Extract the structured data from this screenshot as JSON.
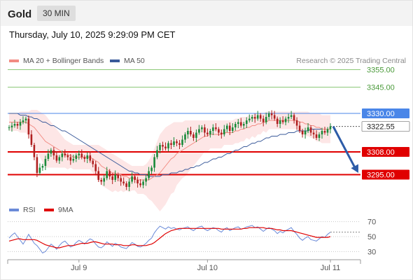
{
  "header": {
    "symbol": "Gold",
    "timeframe": "30 MIN"
  },
  "datetime": "Thursday, July 10, 2025 9:29:09 PM CET",
  "credit": "Research © 2025 Trading Central",
  "colors": {
    "ma20": "#f28b82",
    "band_fill": "#fde3e3",
    "ma50": "#3a5a9a",
    "bull": "#1a8a3a",
    "bear": "#b02020",
    "resistance": "#8cc878",
    "support": "#e00000",
    "pivot": "#4a86e8",
    "price": "#333333",
    "arrow": "#2d5ca8",
    "rsi": "#6a8ad8",
    "rsi_ma": "#e00000"
  },
  "chart_data": [
    {
      "type": "candlestick",
      "legend": [
        "MA 20 + Bollinger Bands",
        "MA 50"
      ],
      "y_range": [
        3282,
        3362
      ],
      "x_ticks": [
        {
          "label": "Jul 9",
          "index": 25
        },
        {
          "label": "Jul 10",
          "index": 71
        },
        {
          "label": "Jul 11",
          "index": 115
        }
      ],
      "levels": [
        {
          "value": 3355.0,
          "label": "3355.00",
          "kind": "resistance"
        },
        {
          "value": 3345.0,
          "label": "3345.00",
          "kind": "resistance"
        },
        {
          "value": 3330.0,
          "label": "3330.00",
          "kind": "pivot"
        },
        {
          "value": 3322.55,
          "label": "3322.55",
          "kind": "price"
        },
        {
          "value": 3308.0,
          "label": "3308.00",
          "kind": "support"
        },
        {
          "value": 3295.0,
          "label": "3295.00",
          "kind": "support"
        }
      ],
      "close": [
        3322,
        3323,
        3324,
        3323,
        3325,
        3326,
        3327,
        3318,
        3312,
        3305,
        3296,
        3299,
        3300,
        3304,
        3307,
        3309,
        3306,
        3303,
        3305,
        3307,
        3306,
        3305,
        3303,
        3304,
        3306,
        3307,
        3305,
        3304,
        3306,
        3303,
        3301,
        3297,
        3292,
        3291,
        3293,
        3297,
        3294,
        3292,
        3295,
        3293,
        3291,
        3290,
        3288,
        3291,
        3294,
        3292,
        3290,
        3289,
        3291,
        3293,
        3297,
        3299,
        3305,
        3309,
        3312,
        3311,
        3310,
        3313,
        3312,
        3314,
        3313,
        3312,
        3315,
        3318,
        3320,
        3318,
        3316,
        3319,
        3321,
        3322,
        3319,
        3318,
        3320,
        3322,
        3321,
        3319,
        3318,
        3321,
        3323,
        3320,
        3322,
        3324,
        3325,
        3323,
        3324,
        3326,
        3327,
        3328,
        3327,
        3329,
        3327,
        3325,
        3328,
        3330,
        3329,
        3327,
        3324,
        3326,
        3325,
        3327,
        3328,
        3329,
        3326,
        3323,
        3320,
        3318,
        3320,
        3322,
        3319,
        3318,
        3316,
        3318,
        3320,
        3319,
        3321,
        3322.55
      ],
      "ma20": [
        3325,
        3325,
        3325,
        3325,
        3325,
        3325,
        3325,
        3324,
        3323,
        3322,
        3320,
        3318,
        3316,
        3314,
        3313,
        3312,
        3311,
        3310,
        3309,
        3308,
        3307,
        3306,
        3306,
        3305,
        3305,
        3305,
        3305,
        3305,
        3305,
        3305,
        3304,
        3303,
        3302,
        3300,
        3299,
        3298,
        3297,
        3296,
        3296,
        3295,
        3295,
        3294,
        3294,
        3293,
        3293,
        3293,
        3292,
        3292,
        3292,
        3292,
        3292,
        3293,
        3294,
        3295,
        3296,
        3298,
        3300,
        3302,
        3304,
        3305,
        3307,
        3308,
        3309,
        3310,
        3311,
        3312,
        3313,
        3314,
        3315,
        3316,
        3317,
        3317,
        3318,
        3318,
        3318,
        3318,
        3318,
        3319,
        3319,
        3319,
        3319,
        3320,
        3320,
        3321,
        3321,
        3322,
        3322,
        3323,
        3323,
        3324,
        3324,
        3325,
        3325,
        3326,
        3326,
        3326,
        3326,
        3326,
        3326,
        3326,
        3326,
        3326,
        3326,
        3326,
        3325,
        3325,
        3324,
        3324,
        3323,
        3323,
        3322,
        3322,
        3321,
        3321,
        3321,
        3321
      ],
      "band_upper": [
        3330,
        3330,
        3330,
        3330,
        3331,
        3331,
        3331,
        3331,
        3332,
        3332,
        3332,
        3331,
        3330,
        3329,
        3327,
        3325,
        3323,
        3321,
        3319,
        3317,
        3315,
        3314,
        3313,
        3312,
        3312,
        3312,
        3312,
        3312,
        3312,
        3312,
        3312,
        3312,
        3312,
        3311,
        3310,
        3309,
        3308,
        3307,
        3306,
        3305,
        3304,
        3303,
        3302,
        3301,
        3300,
        3300,
        3300,
        3300,
        3300,
        3301,
        3303,
        3306,
        3310,
        3314,
        3318,
        3320,
        3322,
        3323,
        3324,
        3325,
        3325,
        3325,
        3325,
        3326,
        3326,
        3326,
        3326,
        3326,
        3326,
        3326,
        3326,
        3326,
        3326,
        3326,
        3326,
        3326,
        3326,
        3326,
        3326,
        3326,
        3326,
        3327,
        3327,
        3328,
        3328,
        3328,
        3329,
        3329,
        3330,
        3330,
        3330,
        3330,
        3331,
        3331,
        3331,
        3331,
        3331,
        3331,
        3331,
        3331,
        3331,
        3331,
        3331,
        3331,
        3331,
        3331,
        3331,
        3331,
        3330,
        3330,
        3330,
        3330,
        3329,
        3329,
        3329,
        3329
      ],
      "band_lower": [
        3320,
        3320,
        3320,
        3320,
        3319,
        3319,
        3319,
        3317,
        3314,
        3312,
        3308,
        3305,
        3302,
        3299,
        3299,
        3299,
        3299,
        3299,
        3299,
        3299,
        3299,
        3298,
        3299,
        3298,
        3298,
        3298,
        3298,
        3298,
        3298,
        3298,
        3296,
        3294,
        3292,
        3289,
        3288,
        3287,
        3286,
        3285,
        3286,
        3285,
        3286,
        3285,
        3286,
        3285,
        3286,
        3286,
        3284,
        3284,
        3284,
        3283,
        3281,
        3280,
        3278,
        3276,
        3274,
        3276,
        3278,
        3281,
        3284,
        3285,
        3289,
        3291,
        3293,
        3294,
        3296,
        3298,
        3300,
        3302,
        3304,
        3306,
        3308,
        3308,
        3310,
        3310,
        3310,
        3310,
        3310,
        3312,
        3312,
        3312,
        3312,
        3313,
        3313,
        3314,
        3314,
        3316,
        3315,
        3317,
        3316,
        3318,
        3318,
        3320,
        3319,
        3321,
        3321,
        3321,
        3321,
        3321,
        3321,
        3321,
        3321,
        3321,
        3321,
        3321,
        3319,
        3319,
        3317,
        3317,
        3316,
        3316,
        3314,
        3314,
        3313,
        3313,
        3313,
        3313
      ],
      "ma50": [
        3330,
        3330,
        3330,
        3330,
        3329,
        3329,
        3329,
        3328,
        3328,
        3327,
        3327,
        3326,
        3325,
        3325,
        3324,
        3323,
        3323,
        3322,
        3321,
        3320,
        3320,
        3319,
        3318,
        3317,
        3316,
        3315,
        3314,
        3313,
        3312,
        3311,
        3310,
        3309,
        3308,
        3307,
        3306,
        3305,
        3304,
        3303,
        3302,
        3301,
        3300,
        3299,
        3298,
        3297,
        3297,
        3296,
        3296,
        3295,
        3295,
        3295,
        3294,
        3294,
        3294,
        3294,
        3294,
        3295,
        3295,
        3295,
        3296,
        3296,
        3296,
        3297,
        3297,
        3298,
        3298,
        3299,
        3299,
        3300,
        3300,
        3301,
        3302,
        3302,
        3303,
        3304,
        3304,
        3305,
        3305,
        3306,
        3307,
        3307,
        3308,
        3309,
        3309,
        3310,
        3311,
        3311,
        3312,
        3313,
        3313,
        3314,
        3314,
        3315,
        3316,
        3316,
        3317,
        3317,
        3317,
        3318,
        3318,
        3318,
        3319,
        3319,
        3319,
        3320,
        3320,
        3320,
        3320,
        3320,
        3321,
        3321,
        3321,
        3321,
        3321,
        3321,
        3321,
        3321
      ],
      "forecast_arrow": {
        "from": {
          "index": 115,
          "value": 3322.55
        },
        "to": {
          "index": 125,
          "value": 3296
        }
      }
    },
    {
      "type": "line",
      "legend": [
        "RSI",
        "9MA"
      ],
      "y_range": [
        20,
        80
      ],
      "y_ticks": [
        70,
        50,
        30
      ],
      "rsi": [
        48,
        52,
        55,
        50,
        45,
        40,
        46,
        53,
        47,
        41,
        38,
        33,
        28,
        30,
        35,
        40,
        37,
        33,
        38,
        42,
        44,
        40,
        36,
        38,
        42,
        45,
        43,
        40,
        44,
        47,
        45,
        40,
        36,
        35,
        38,
        43,
        40,
        37,
        41,
        39,
        36,
        35,
        34,
        38,
        42,
        40,
        37,
        36,
        38,
        41,
        45,
        48,
        55,
        60,
        64,
        62,
        60,
        63,
        61,
        62,
        60,
        59,
        61,
        62,
        63,
        60,
        58,
        61,
        63,
        64,
        60,
        58,
        60,
        62,
        61,
        58,
        56,
        60,
        62,
        58,
        60,
        62,
        63,
        60,
        61,
        63,
        64,
        65,
        62,
        63,
        60,
        57,
        60,
        62,
        60,
        58,
        54,
        57,
        55,
        58,
        60,
        62,
        57,
        53,
        48,
        45,
        48,
        50,
        46,
        45,
        44,
        47,
        50,
        49,
        53,
        56
      ],
      "rsi_ma": [
        44,
        45,
        46,
        47,
        47,
        46,
        46,
        46,
        46,
        46,
        45,
        43,
        41,
        39,
        38,
        37,
        36,
        35,
        35,
        36,
        37,
        38,
        38,
        38,
        39,
        40,
        41,
        41,
        41,
        42,
        43,
        43,
        42,
        41,
        40,
        40,
        40,
        40,
        39,
        39,
        39,
        38,
        38,
        38,
        39,
        39,
        38,
        38,
        38,
        38,
        39,
        40,
        42,
        45,
        48,
        51,
        54,
        56,
        58,
        59,
        60,
        61,
        61,
        61,
        61,
        61,
        61,
        61,
        61,
        61,
        61,
        61,
        61,
        61,
        61,
        61,
        60,
        60,
        60,
        60,
        60,
        60,
        60,
        60,
        61,
        61,
        62,
        62,
        62,
        62,
        62,
        62,
        61,
        61,
        61,
        60,
        59,
        59,
        58,
        58,
        58,
        58,
        57,
        56,
        55,
        54,
        53,
        52,
        51,
        50,
        49,
        49,
        49,
        49,
        49,
        50
      ]
    }
  ]
}
